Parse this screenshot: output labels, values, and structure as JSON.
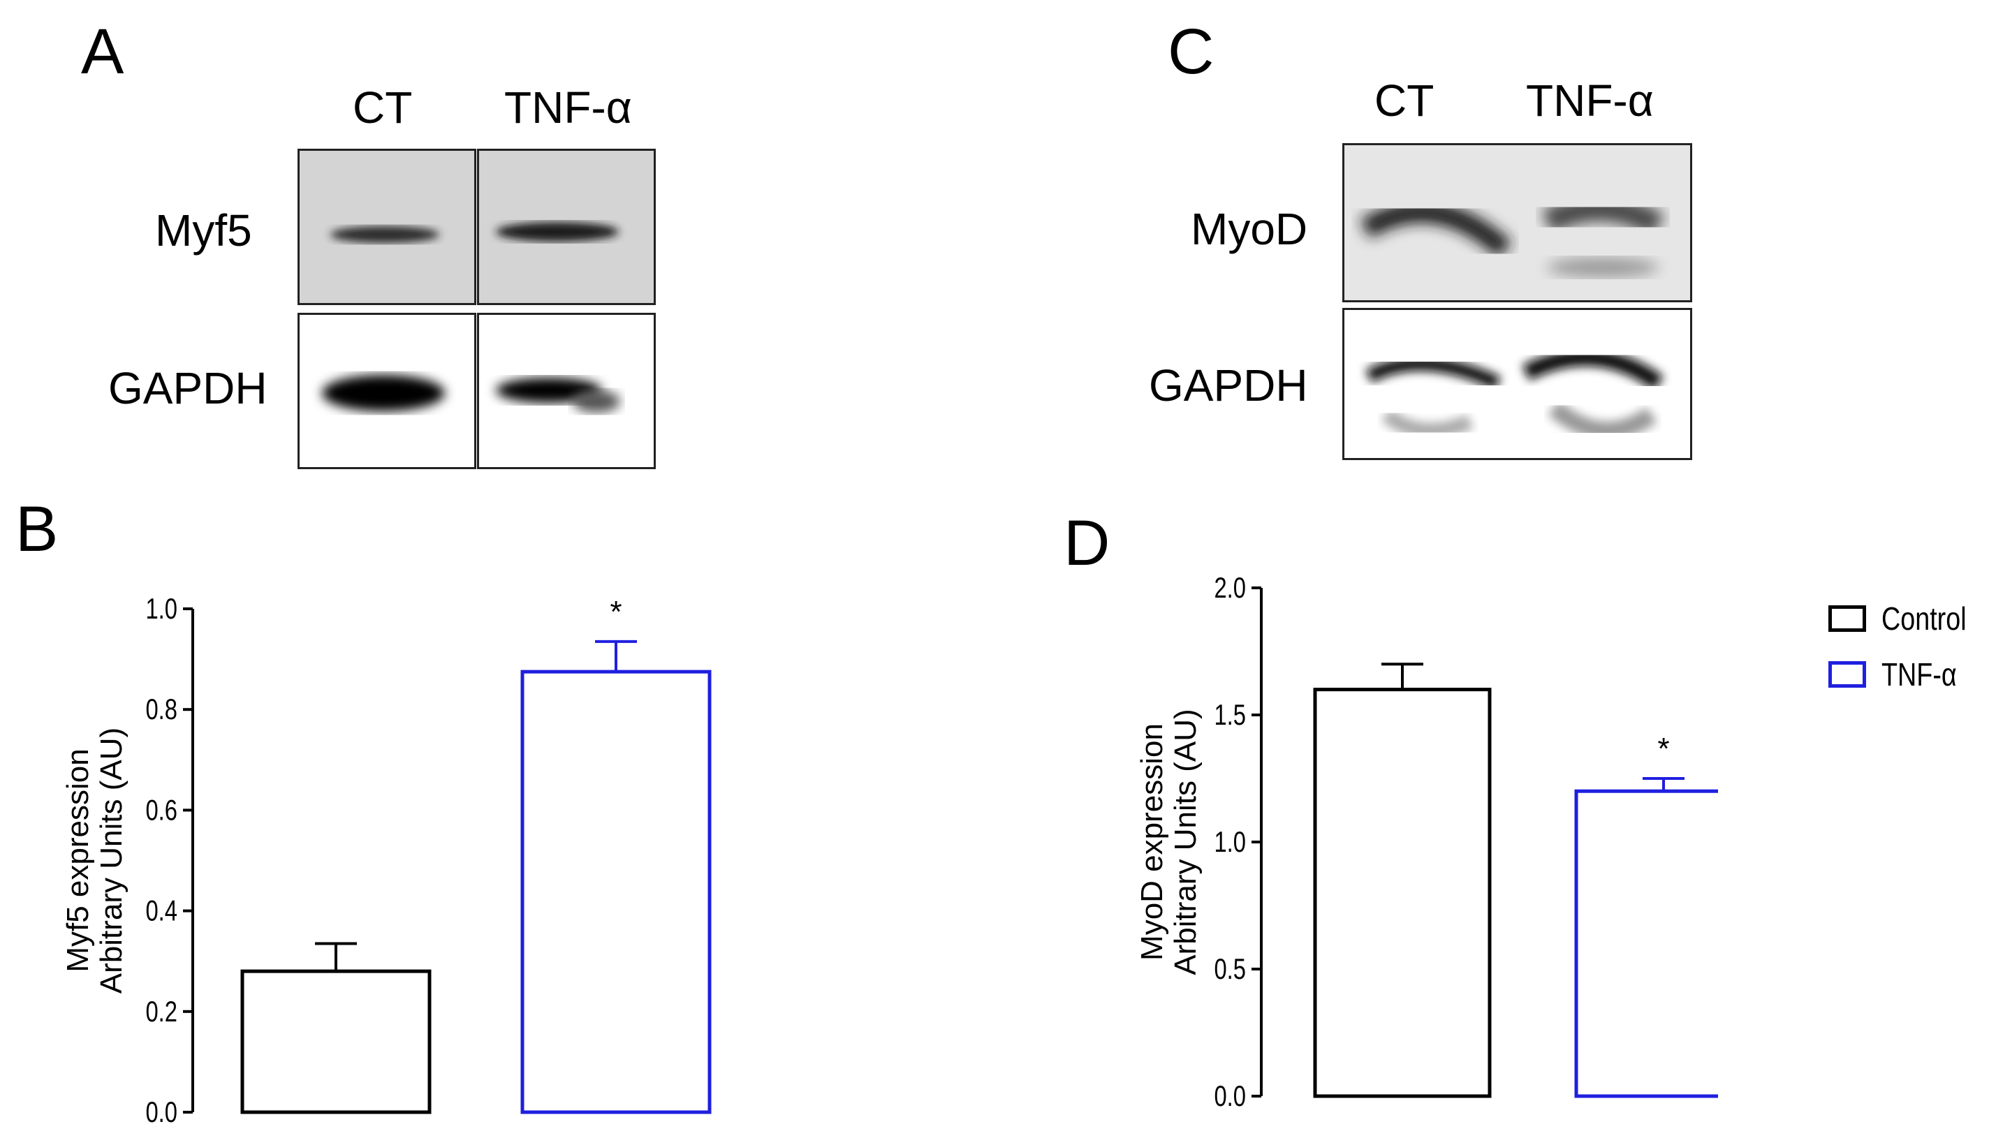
{
  "panels": {
    "A": {
      "letter": "A",
      "lanes": [
        "CT",
        "TNF-α"
      ],
      "rows": [
        "Myf5",
        "GAPDH"
      ]
    },
    "B": {
      "letter": "B"
    },
    "C": {
      "letter": "C",
      "lanes": [
        "CT",
        "TNF-α"
      ],
      "rows": [
        "MyoD",
        "GAPDH"
      ]
    },
    "D": {
      "letter": "D"
    }
  },
  "legend": {
    "items": [
      {
        "label": "Control",
        "color": "#000000"
      },
      {
        "label": "TNF-α",
        "color": "#1f1fe0"
      }
    ]
  },
  "chart_data": [
    {
      "type": "bar",
      "categories": [
        "Control",
        "TNF-α"
      ],
      "values": [
        0.28,
        0.875
      ],
      "errors": [
        0.055,
        0.06
      ],
      "colors": [
        "#000000",
        "#1f1fe0"
      ],
      "significance": [
        "",
        "*"
      ],
      "ylim": [
        0.0,
        1.0
      ],
      "yticks": [
        "0.0",
        "0.2",
        "0.4",
        "0.6",
        "0.8",
        "1.0"
      ],
      "ylabel_lines": [
        "Myf5 expression",
        "Arbitrary  Units (AU)"
      ]
    },
    {
      "type": "bar",
      "categories": [
        "Control",
        "TNF-α"
      ],
      "values": [
        1.6,
        1.2
      ],
      "errors": [
        0.1,
        0.05
      ],
      "colors": [
        "#000000",
        "#1f1fe0"
      ],
      "significance": [
        "",
        "*"
      ],
      "ylim": [
        0.0,
        2.0
      ],
      "yticks": [
        "0.0",
        "0.5",
        "1.0",
        "1.5",
        "2.0"
      ],
      "ylabel_lines": [
        "MyoD expression",
        "Arbitrary  Units (AU)"
      ]
    }
  ]
}
